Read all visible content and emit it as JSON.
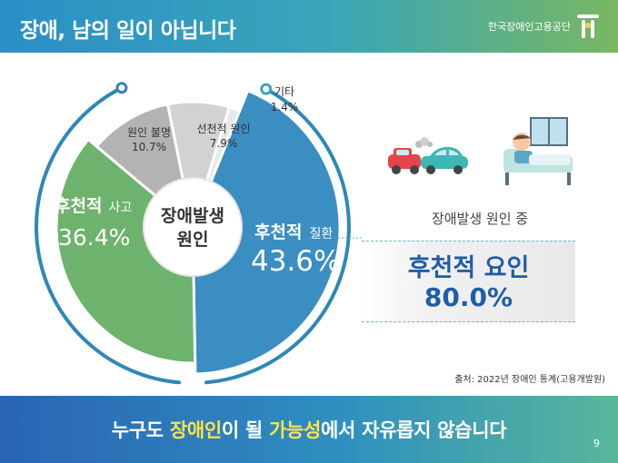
{
  "header": {
    "title": "장애, 남의 일이 아닙니다",
    "org_name": "한국장애인고용공단"
  },
  "chart_data": {
    "type": "pie",
    "title": "장애발생 원인",
    "center_label_line1": "장애발생",
    "center_label_line2": "원인",
    "slices": [
      {
        "name": "후천적 질환",
        "name_main": "후천적",
        "name_sub": "질환",
        "value": 43.6,
        "value_label": "43.6%",
        "color": "#3a8ec2"
      },
      {
        "name": "후천적 사고",
        "name_main": "후천적",
        "name_sub": "사고",
        "value": 36.4,
        "value_label": "36.4%",
        "color": "#6db36e"
      },
      {
        "name": "원인 불명",
        "value": 10.7,
        "value_label": "10.7%",
        "color": "#b3b3b3"
      },
      {
        "name": "선천적 원인",
        "value": 7.9,
        "value_label": "7.9%",
        "color": "#d2d2d2"
      },
      {
        "name": "기타",
        "value": 1.4,
        "value_label": "1.4%",
        "color": "#e8e8e8"
      }
    ],
    "source_note": "출처: 2022년 장애인 통계(고용개발원)"
  },
  "summary": {
    "label": "장애발생 원인 중",
    "title": "후천적 요인",
    "value": "80.0%"
  },
  "footer": {
    "text_1": "누구도 ",
    "highlight_1": "장애인",
    "text_2": "이 될 ",
    "highlight_2": "가능성",
    "text_3": "에서 자유롭지 않습니다",
    "page_number": "9"
  }
}
